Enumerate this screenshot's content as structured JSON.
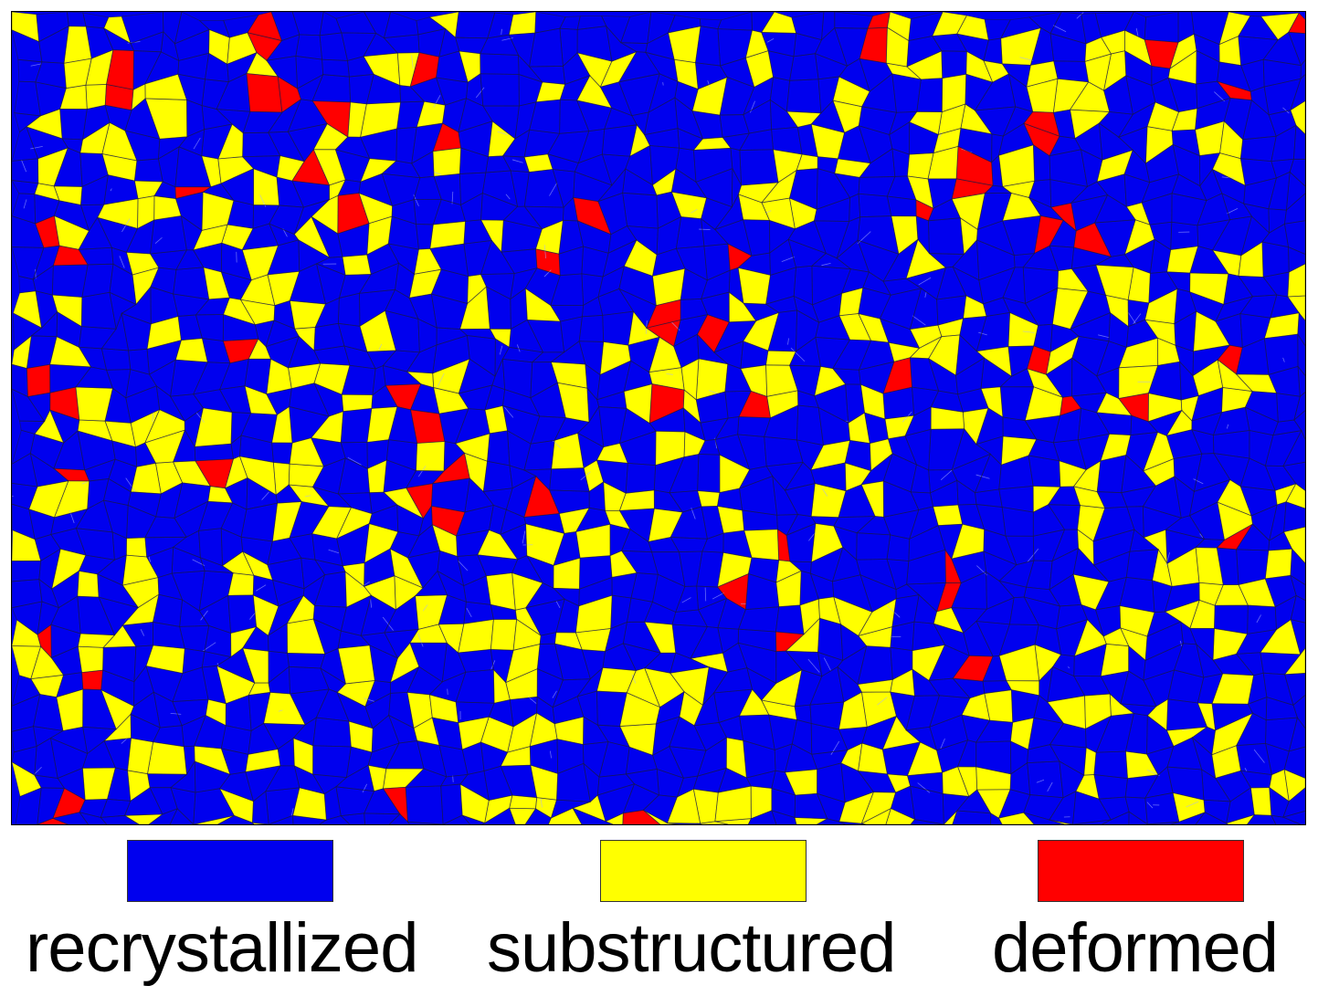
{
  "legend": [
    {
      "label": "recrystallized",
      "color": "#0000ee"
    },
    {
      "label": "substructured",
      "color": "#ffff00"
    },
    {
      "label": "deformed",
      "color": "#ff0000"
    }
  ],
  "colors": {
    "grain_boundary": "#1a1a40",
    "subgrain_boundary": "#aab0ff"
  }
}
